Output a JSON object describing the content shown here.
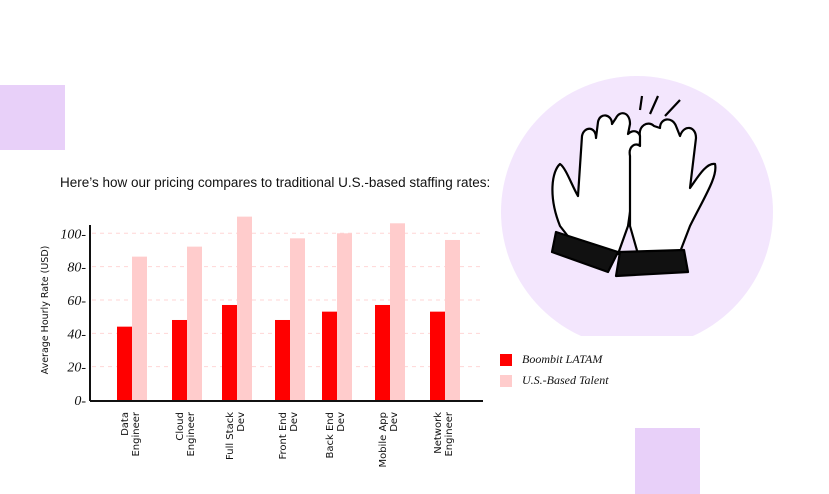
{
  "intro": "Here’s how our pricing compares to traditional U.S.-based staffing rates:",
  "chart_data": {
    "type": "bar",
    "title": "",
    "xlabel": "",
    "ylabel": "Average Hourly Rate (USD)",
    "ylim": [
      0,
      110
    ],
    "yticks": [
      "0-",
      "20-",
      "40-",
      "60-",
      "80-",
      "100-"
    ],
    "ytick_values": [
      0,
      20,
      40,
      60,
      80,
      100
    ],
    "categories": [
      [
        "Data",
        "Engineer"
      ],
      [
        "Cloud",
        "Engineer"
      ],
      [
        "Full Stack",
        "Dev"
      ],
      [
        "Front End",
        "Dev"
      ],
      [
        "Back End",
        "Dev"
      ],
      [
        "Mobile App",
        "Dev"
      ],
      [
        "Network",
        "Engineer"
      ]
    ],
    "series": [
      {
        "name": "Boombit LATAM",
        "color": "#ff0000",
        "values": [
          44,
          48,
          57,
          48,
          53,
          57,
          53
        ]
      },
      {
        "name": "U.S.-Based Talent",
        "color": "#ffcccc",
        "values": [
          86,
          92,
          110,
          97,
          100,
          106,
          96
        ]
      }
    ],
    "grid": true,
    "legend": "right"
  }
}
